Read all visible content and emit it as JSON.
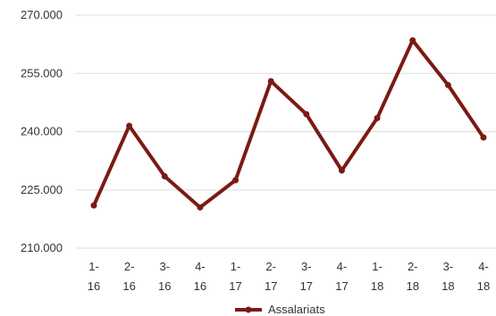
{
  "chart_data": {
    "type": "line",
    "title": "",
    "xlabel": "",
    "ylabel": "",
    "categories": [
      [
        "1-",
        "16"
      ],
      [
        "2-",
        "16"
      ],
      [
        "3-",
        "16"
      ],
      [
        "4-",
        "16"
      ],
      [
        "1-",
        "17"
      ],
      [
        "2-",
        "17"
      ],
      [
        "3-",
        "17"
      ],
      [
        "4-",
        "17"
      ],
      [
        "1-",
        "18"
      ],
      [
        "2-",
        "18"
      ],
      [
        "3-",
        "18"
      ],
      [
        "4-",
        "18"
      ]
    ],
    "series": [
      {
        "name": "Assalariats",
        "color": "#7b1a14",
        "values": [
          221000,
          241500,
          228500,
          220500,
          227500,
          253000,
          244500,
          230000,
          243500,
          263500,
          252000,
          238500
        ]
      }
    ],
    "ylim": [
      210000,
      270000
    ],
    "yticks": [
      210000,
      225000,
      240000,
      255000,
      270000
    ],
    "ytick_labels": [
      "210.000",
      "225.000",
      "240.000",
      "255.000",
      "270.000"
    ],
    "grid": true,
    "grid_color": "#dddddd",
    "legend": {
      "position": "bottom",
      "label": "Assalariats"
    }
  }
}
